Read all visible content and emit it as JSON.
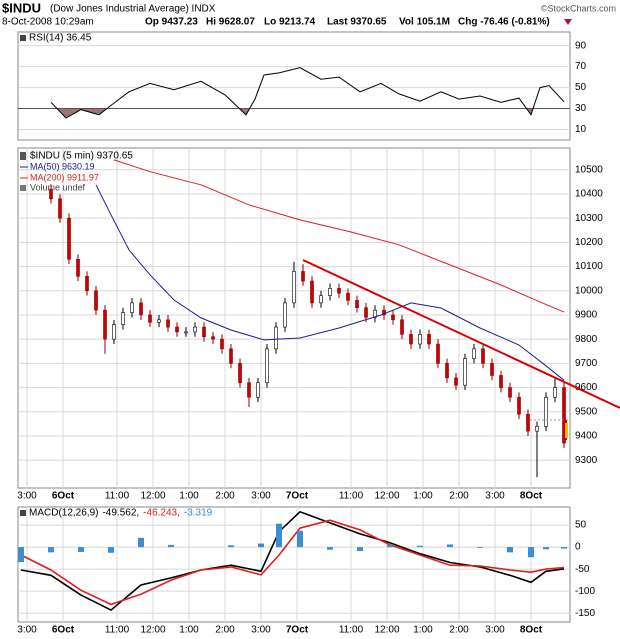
{
  "header": {
    "symbol": "$INDU",
    "name": "(Dow Jones Industrial Average) INDX",
    "date": "8-Oct-2008 10:29am",
    "stats": [
      "Op 9437.23",
      "Hi 9628.07",
      "Lo 9213.74",
      "Last 9370.65",
      "Vol 105.1M",
      "Chg -76.46 (-0.81%)"
    ],
    "credit": "©StockCharts.com"
  },
  "chart_data": [
    {
      "type": "line",
      "title": "RSI(14) 36.45",
      "series": [
        {
          "color": "#000000",
          "x": [
            11,
            16,
            21,
            27,
            31,
            37,
            44,
            52,
            61,
            69,
            76,
            79,
            82,
            87,
            94,
            101,
            107,
            114,
            121,
            127,
            134,
            141,
            147,
            154,
            161,
            167,
            171,
            174,
            177,
            182
          ],
          "values": [
            36,
            21,
            29,
            24,
            33,
            46,
            54,
            48,
            56,
            43,
            24,
            39,
            62,
            64,
            69,
            58,
            60,
            46,
            54,
            44,
            37,
            46,
            39,
            42,
            36,
            40,
            24,
            50,
            52,
            36.45
          ]
        }
      ],
      "fill_below": {
        "value": 30,
        "color": "#9c7575"
      },
      "xlim": [
        0,
        184
      ],
      "ylim": [
        0,
        103
      ],
      "yticks": [
        10,
        30,
        50,
        70,
        90
      ],
      "grid": true
    },
    {
      "type": "candlestick",
      "name": "$INDU (5 min) 9370.65",
      "volume_label": "Volume undef",
      "up_color": "#ffffff",
      "down_color": "#cc0000",
      "x": [
        11,
        14,
        17,
        20,
        23,
        26,
        29,
        32,
        35,
        38,
        41,
        44,
        47,
        50,
        53,
        56,
        59,
        62,
        65,
        68,
        71,
        74,
        77,
        80,
        83,
        86,
        89,
        92,
        95,
        98,
        101,
        104,
        107,
        110,
        113,
        116,
        119,
        122,
        125,
        128,
        131,
        134,
        137,
        140,
        143,
        146,
        149,
        152,
        155,
        158,
        161,
        164,
        167,
        170,
        173,
        176,
        179,
        182
      ],
      "open": [
        10420,
        10380,
        10300,
        10130,
        10060,
        10000,
        9920,
        9800,
        9860,
        9910,
        9950,
        9900,
        9870,
        9880,
        9850,
        9830,
        9830,
        9850,
        9810,
        9800,
        9760,
        9700,
        9620,
        9560,
        9620,
        9760,
        9850,
        9950,
        10080,
        10040,
        9950,
        9980,
        10010,
        9990,
        9960,
        9930,
        9890,
        9920,
        9900,
        9880,
        9820,
        9780,
        9820,
        9780,
        9700,
        9640,
        9610,
        9720,
        9760,
        9700,
        9650,
        9600,
        9560,
        9490,
        9420,
        9440,
        9560,
        9600
      ],
      "high": [
        10440,
        10400,
        10320,
        10150,
        10080,
        10020,
        9940,
        9880,
        9930,
        9970,
        9970,
        9920,
        9900,
        9900,
        9870,
        9850,
        9870,
        9870,
        9830,
        9820,
        9780,
        9720,
        9640,
        9640,
        9780,
        9870,
        9970,
        10120,
        10110,
        10060,
        10000,
        10030,
        10030,
        10010,
        9980,
        9950,
        9940,
        9940,
        9920,
        9900,
        9840,
        9840,
        9840,
        9800,
        9720,
        9660,
        9740,
        9780,
        9780,
        9720,
        9670,
        9620,
        9580,
        9510,
        9460,
        9580,
        9640,
        9620
      ],
      "low": [
        10360,
        10280,
        10110,
        10040,
        9980,
        9900,
        9740,
        9780,
        9840,
        9890,
        9880,
        9850,
        9850,
        9830,
        9810,
        9810,
        9810,
        9790,
        9780,
        9740,
        9680,
        9600,
        9520,
        9540,
        9600,
        9740,
        9830,
        9930,
        10020,
        9930,
        9930,
        9960,
        9970,
        9940,
        9910,
        9870,
        9870,
        9880,
        9860,
        9800,
        9760,
        9760,
        9760,
        9680,
        9620,
        9590,
        9590,
        9700,
        9680,
        9630,
        9580,
        9540,
        9470,
        9400,
        9230,
        9420,
        9540,
        9350
      ],
      "close": [
        10380,
        10300,
        10130,
        10060,
        10000,
        9920,
        9800,
        9860,
        9910,
        9950,
        9900,
        9870,
        9880,
        9850,
        9830,
        9830,
        9850,
        9810,
        9800,
        9760,
        9700,
        9620,
        9560,
        9620,
        9760,
        9850,
        9950,
        10080,
        10040,
        9950,
        9980,
        10010,
        9990,
        9960,
        9930,
        9890,
        9920,
        9900,
        9880,
        9820,
        9780,
        9820,
        9780,
        9700,
        9640,
        9610,
        9720,
        9760,
        9700,
        9650,
        9600,
        9560,
        9490,
        9420,
        9440,
        9560,
        9600,
        9370.65
      ],
      "series": [
        {
          "name": "MA(50) 9630.19",
          "color": "#1c1c9c",
          "x": [
            26,
            31,
            37,
            44,
            52,
            61,
            71,
            82,
            94,
            107,
            121,
            131,
            141,
            154,
            167,
            176,
            182
          ],
          "values": [
            10438,
            10314,
            10169,
            10066,
            9962,
            9888,
            9838,
            9797,
            9805,
            9846,
            9900,
            9950,
            9929,
            9846,
            9776,
            9690,
            9630.19
          ]
        },
        {
          "name": "MA(200) 9911.97",
          "color": "#dd1f1f",
          "x": [
            32,
            44,
            61,
            77,
            94,
            111,
            127,
            144,
            161,
            174,
            182
          ],
          "values": [
            10541,
            10492,
            10438,
            10355,
            10293,
            10243,
            10190,
            10107,
            10024,
            9954,
            9911.97
          ]
        }
      ],
      "xlim": [
        0,
        184
      ],
      "ylim": [
        9185,
        10590
      ],
      "yticks": [
        9300,
        9400,
        9500,
        9600,
        9700,
        9800,
        9900,
        10000,
        10100,
        10200,
        10300,
        10400,
        10500
      ],
      "xticks": [
        {
          "value": 3,
          "label": "3:00"
        },
        {
          "value": 15,
          "label": "6Oct"
        },
        {
          "value": 33,
          "label": "11:00"
        },
        {
          "value": 45,
          "label": "12:00"
        },
        {
          "value": 57,
          "label": "1:00"
        },
        {
          "value": 69,
          "label": "2:00"
        },
        {
          "value": 81,
          "label": "3:00"
        },
        {
          "value": 93,
          "label": "7Oct"
        },
        {
          "value": 111,
          "label": "11:00"
        },
        {
          "value": 123,
          "label": "12:00"
        },
        {
          "value": 135,
          "label": "1:00"
        },
        {
          "value": 147,
          "label": "2:00"
        },
        {
          "value": 159,
          "label": "3:00"
        },
        {
          "value": 171,
          "label": "8Oct"
        }
      ],
      "grid": true
    },
    {
      "type": "line",
      "title": "MACD(12,26,9)",
      "series": [
        {
          "name": "-49.562,",
          "color": "#000000",
          "x": [
            1,
            11,
            21,
            31,
            41,
            51,
            61,
            71,
            81,
            87,
            94,
            104,
            114,
            124,
            134,
            144,
            154,
            164,
            171,
            176,
            182
          ],
          "values": [
            -52,
            -64,
            -109,
            -143,
            -86,
            -70,
            -52,
            -41,
            -55,
            35,
            80,
            55,
            30,
            10,
            -15,
            -35,
            -45,
            -64,
            -80,
            -55,
            -49.562
          ]
        },
        {
          "name": "-46.243,",
          "color": "#dd1f1f",
          "x": [
            1,
            11,
            21,
            31,
            41,
            51,
            61,
            71,
            81,
            87,
            94,
            104,
            114,
            124,
            134,
            144,
            154,
            164,
            171,
            176,
            182
          ],
          "values": [
            -18,
            -52,
            -98,
            -130,
            -107,
            -75,
            -52,
            -45,
            -63,
            -18,
            43,
            61,
            39,
            5,
            -18,
            -41,
            -43,
            -52,
            -57,
            -50,
            -46.243
          ]
        },
        {
          "name": "-3.319",
          "color": "#3b8fd0",
          "style": "bar",
          "x": [
            1,
            11,
            21,
            31,
            41,
            51,
            61,
            71,
            81,
            87,
            94,
            104,
            114,
            124,
            134,
            144,
            154,
            164,
            171,
            176,
            182
          ],
          "values": [
            -34,
            -12,
            -11,
            -13,
            21,
            5,
            0,
            4,
            8,
            53,
            37,
            -6,
            -9,
            5,
            3,
            6,
            -2,
            -12,
            -23,
            -5,
            -3.319
          ]
        }
      ],
      "xlim": [
        0,
        184
      ],
      "ylim": [
        -170,
        91
      ],
      "yticks": [
        50,
        0,
        -50,
        -100,
        -150
      ],
      "xticks": [
        {
          "value": 3,
          "label": "3:00"
        },
        {
          "value": 15,
          "label": "6Oct"
        },
        {
          "value": 33,
          "label": "11:00"
        },
        {
          "value": 45,
          "label": "12:00"
        },
        {
          "value": 57,
          "label": "1:00"
        },
        {
          "value": 69,
          "label": "2:00"
        },
        {
          "value": 81,
          "label": "3:00"
        },
        {
          "value": 93,
          "label": "7Oct"
        },
        {
          "value": 111,
          "label": "11:00"
        },
        {
          "value": 123,
          "label": "12:00"
        },
        {
          "value": 135,
          "label": "1:00"
        },
        {
          "value": 147,
          "label": "2:00"
        },
        {
          "value": 159,
          "label": "3:00"
        },
        {
          "value": 171,
          "label": "8Oct"
        }
      ],
      "grid": true
    }
  ]
}
